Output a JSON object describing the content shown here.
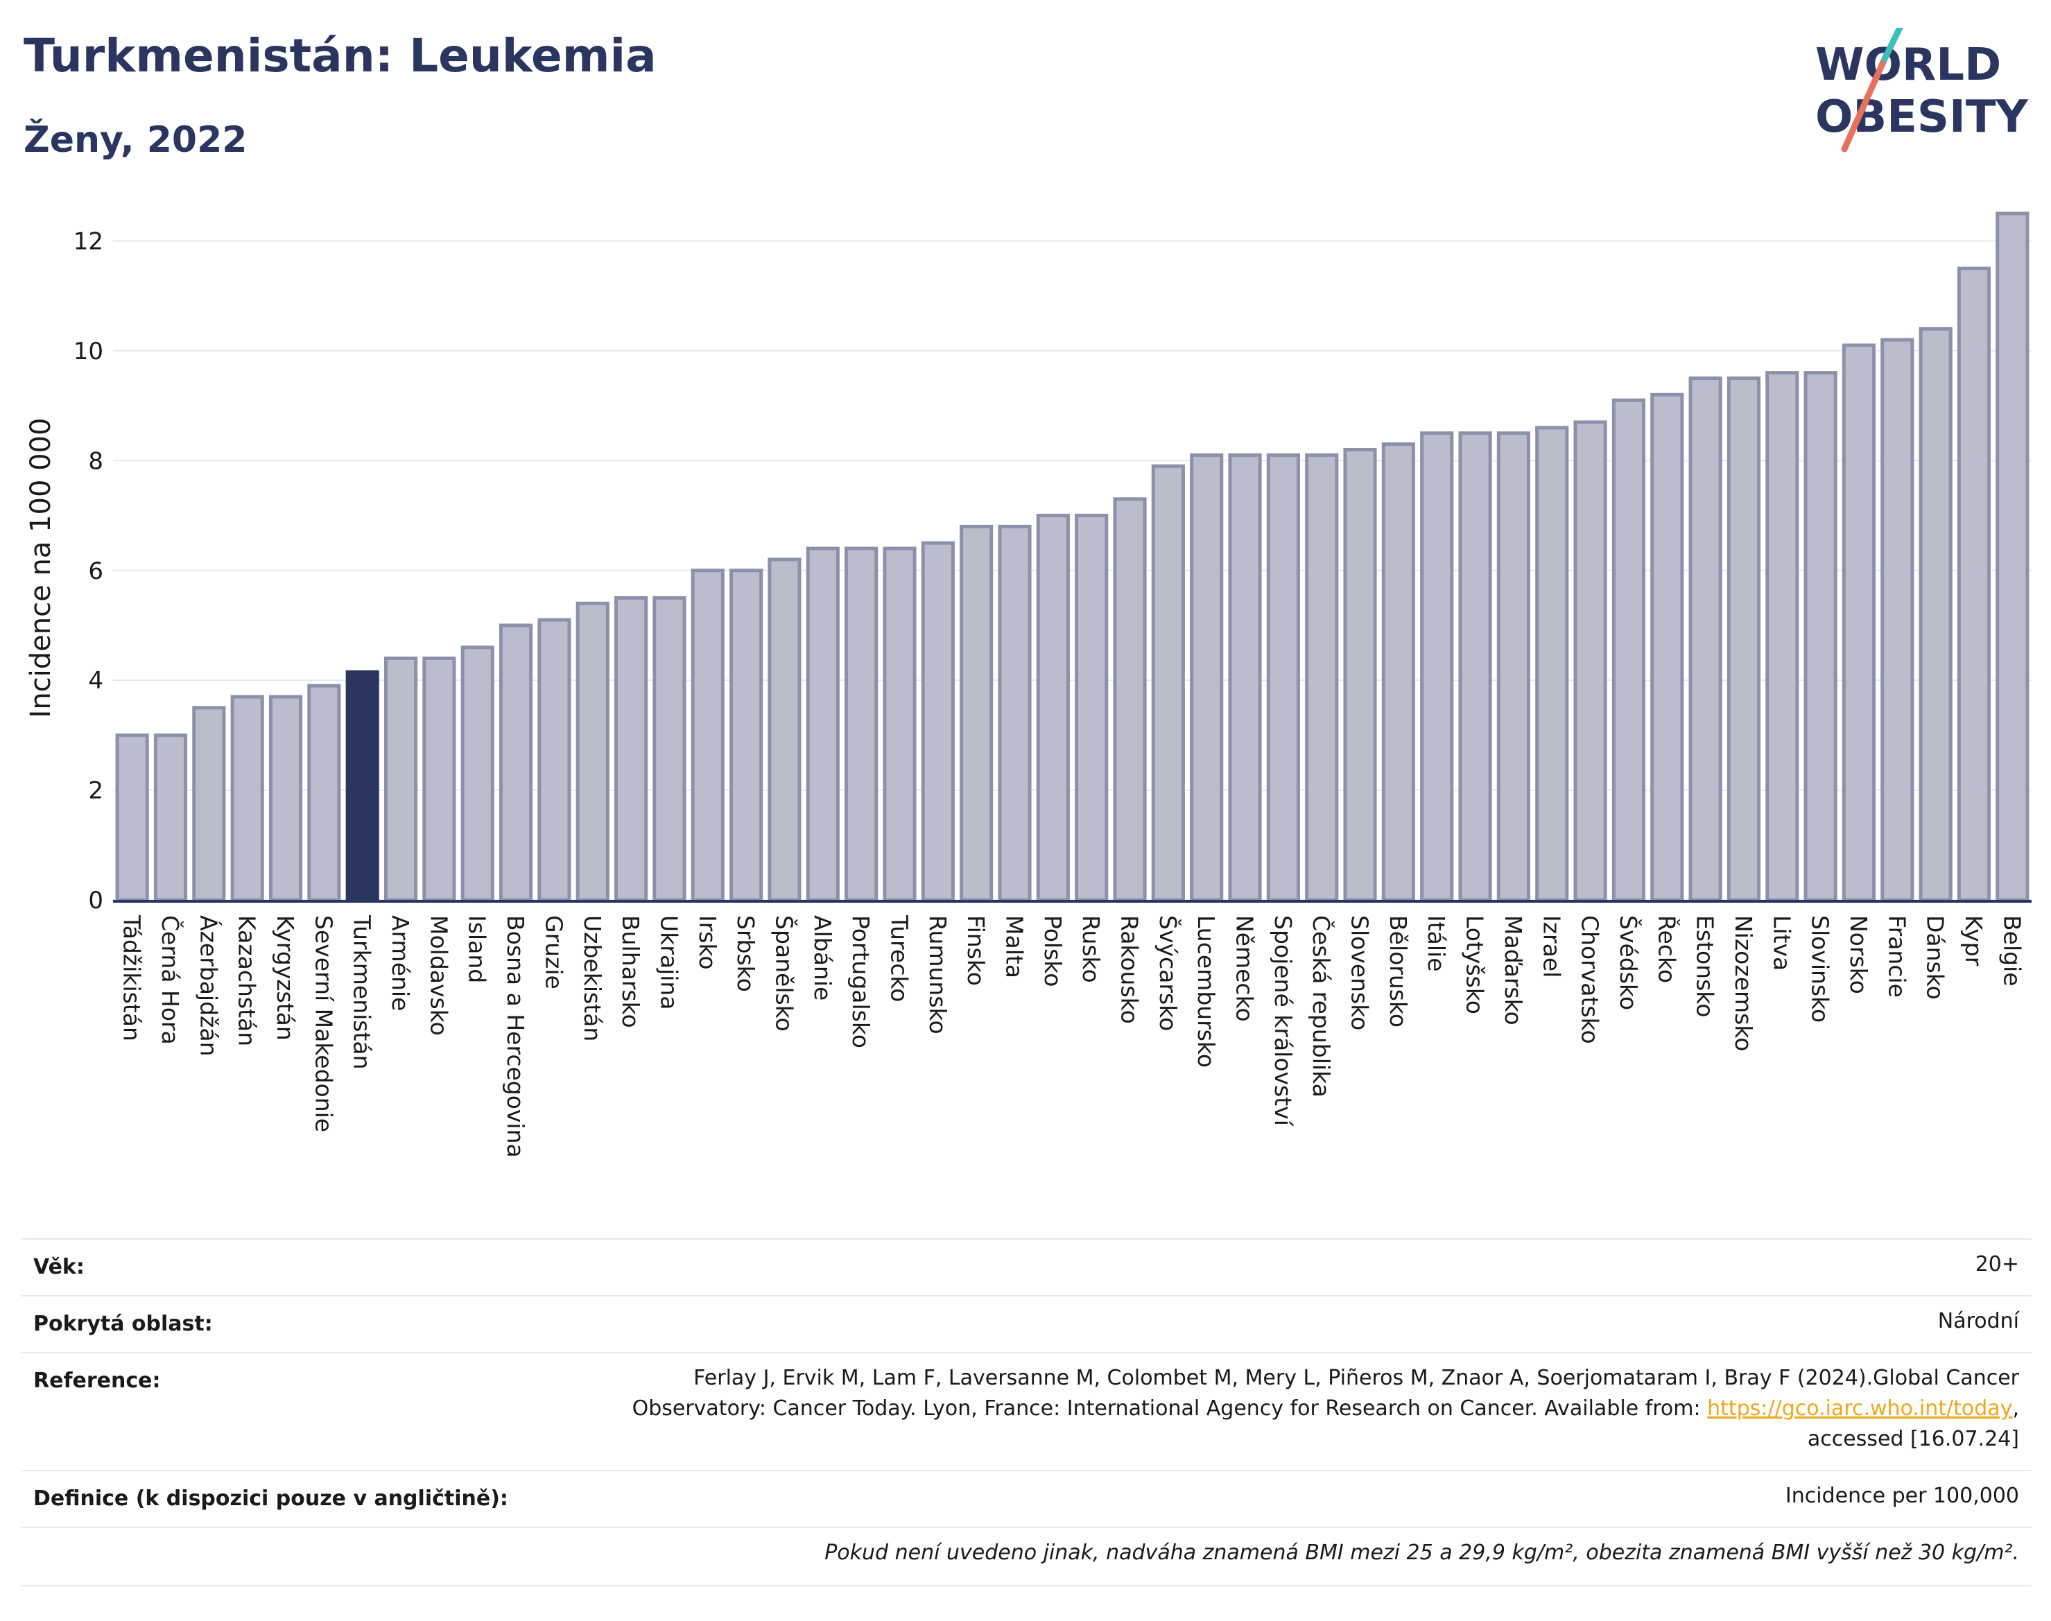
{
  "header": {
    "title": "Turkmenistán: Leukemia",
    "subtitle": "Ženy, 2022"
  },
  "logo": {
    "line1": "WORLD",
    "line2": "OBESITY"
  },
  "colors": {
    "bar": "#b9bdcc",
    "bar_stroke": "#8b91ab",
    "highlight": "#2a3560",
    "grid": "#e6e8f0",
    "text_dark": "#2a3560",
    "link": "#f0a81c"
  },
  "chart_data": {
    "type": "bar",
    "ylabel": "Incidence na 100 000",
    "ylim": [
      0,
      12.6
    ],
    "yticks": [
      0,
      2,
      4,
      6,
      8,
      10,
      12
    ],
    "highlight": "Turkmenistán",
    "grid": true,
    "categories": [
      "Tádžikistán",
      "Černá Hora",
      "Ázerbajdžán",
      "Kazachstán",
      "Kyrgyzstán",
      "Severní Makedonie",
      "Turkmenistán",
      "Arménie",
      "Moldavsko",
      "Island",
      "Bosna a Hercegovina",
      "Gruzie",
      "Uzbekistán",
      "Bulharsko",
      "Ukrajina",
      "Irsko",
      "Srbsko",
      "Španělsko",
      "Albánie",
      "Portugalsko",
      "Turecko",
      "Rumunsko",
      "Finsko",
      "Malta",
      "Polsko",
      "Rusko",
      "Rakousko",
      "Švýcarsko",
      "Lucembursko",
      "Německo",
      "Spojené království",
      "Česká republika",
      "Slovensko",
      "Bělorusko",
      "Itálie",
      "Lotyšsko",
      "Maďarsko",
      "Izrael",
      "Chorvatsko",
      "Švédsko",
      "Řecko",
      "Estonsko",
      "Nizozemsko",
      "Litva",
      "Slovinsko",
      "Norsko",
      "Francie",
      "Dánsko",
      "Kypr",
      "Belgie"
    ],
    "values": [
      3.0,
      3.0,
      3.5,
      3.7,
      3.7,
      3.9,
      4.15,
      4.4,
      4.4,
      4.6,
      5.0,
      5.1,
      5.4,
      5.5,
      5.5,
      6.0,
      6.0,
      6.2,
      6.4,
      6.4,
      6.4,
      6.5,
      6.8,
      6.8,
      7.0,
      7.0,
      7.3,
      7.9,
      8.1,
      8.1,
      8.1,
      8.1,
      8.2,
      8.3,
      8.5,
      8.5,
      8.5,
      8.6,
      8.7,
      9.1,
      9.2,
      9.5,
      9.5,
      9.6,
      9.6,
      10.1,
      10.2,
      10.4,
      11.5,
      12.5
    ]
  },
  "info": {
    "age_label": "Věk:",
    "age_value": "20+",
    "area_label": "Pokrytá oblast:",
    "area_value": "Národní",
    "reference_label": "Reference:",
    "reference_line1": "Ferlay J, Ervik M, Lam F, Laversanne M, Colombet M, Mery L, Piñeros M, Znaor A, Soerjomataram I, Bray F (2024).Global Cancer",
    "reference_line2": "Observatory: Cancer Today. Lyon, France: International Agency for Research on Cancer. Available from: ",
    "reference_link": "https://gco.iarc.who.int/today",
    "reference_line2_end": ",",
    "reference_line3": "accessed [16.07.24]",
    "definition_label": "Definice (k dispozici pouze v angličtině):",
    "definition_value": "Incidence per 100,000",
    "note": "Pokud není uvedeno jinak, nadváha znamená BMI mezi 25 a 29,9 kg/m², obezita znamená BMI vyšší než 30 kg/m²."
  }
}
